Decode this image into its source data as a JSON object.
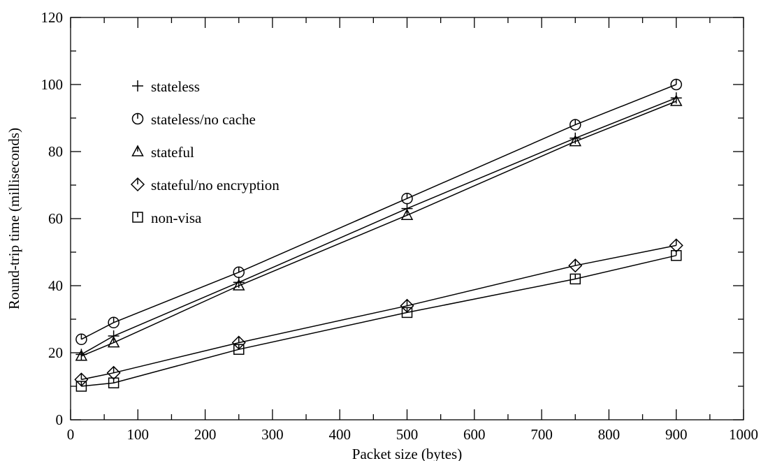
{
  "chart_data": {
    "type": "line",
    "title": "",
    "xlabel": "Packet size (bytes)",
    "ylabel": "Round-trip time (milliseconds)",
    "xlim": [
      0,
      1000
    ],
    "ylim": [
      0,
      120
    ],
    "x_ticks": [
      0,
      100,
      200,
      300,
      400,
      500,
      600,
      700,
      800,
      900,
      1000
    ],
    "y_ticks": [
      0,
      20,
      40,
      60,
      80,
      100,
      120
    ],
    "grid": false,
    "legend_position": "top-left",
    "x": [
      16,
      64,
      250,
      500,
      750,
      900
    ],
    "series": [
      {
        "name": "stateless",
        "marker": "plus",
        "values": [
          19.5,
          25,
          41,
          63,
          84,
          96
        ]
      },
      {
        "name": "stateless/no cache",
        "marker": "circle",
        "values": [
          24,
          29,
          44,
          66,
          88,
          100
        ]
      },
      {
        "name": "stateful",
        "marker": "triangle",
        "values": [
          19,
          23,
          40,
          61,
          83,
          95
        ]
      },
      {
        "name": "stateful/no encryption",
        "marker": "diamond",
        "values": [
          12,
          14,
          23,
          34,
          46,
          52
        ]
      },
      {
        "name": "non-visa",
        "marker": "square",
        "values": [
          10,
          11,
          21,
          32,
          42,
          49
        ]
      }
    ]
  }
}
